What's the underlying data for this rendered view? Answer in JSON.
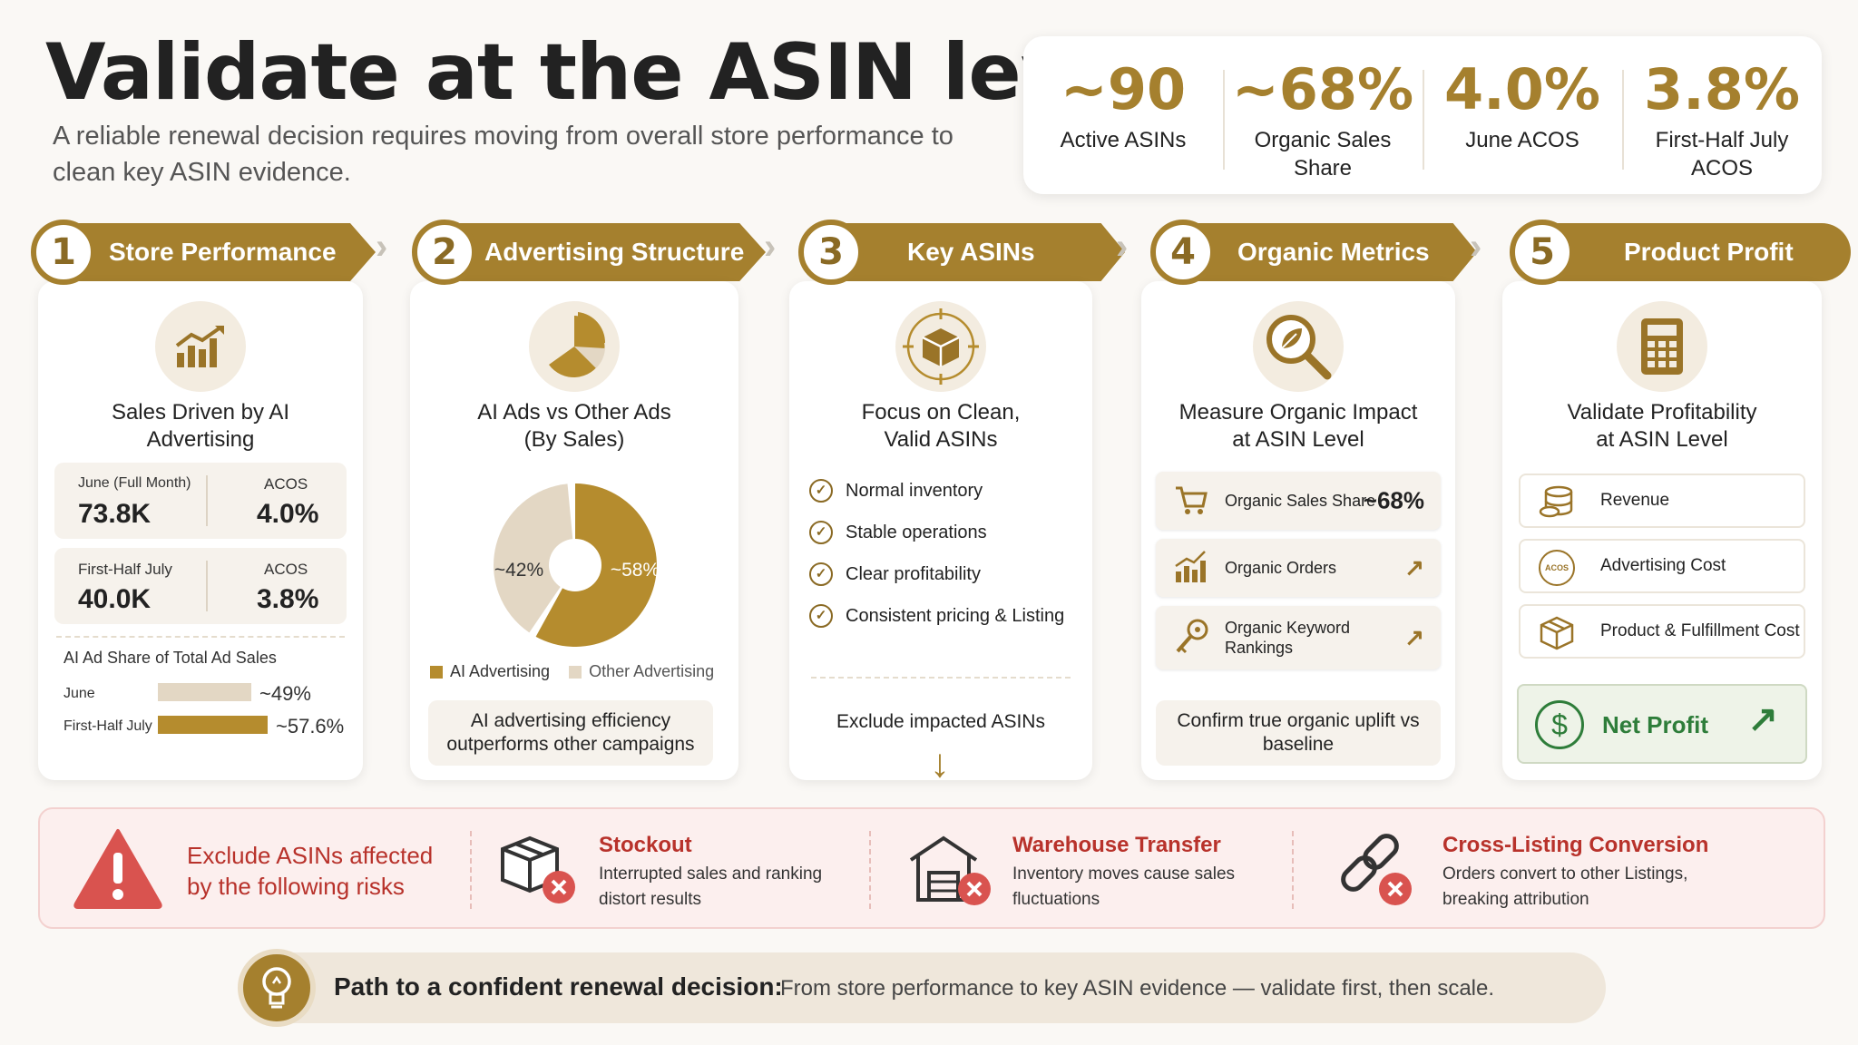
{
  "header": {
    "title": "Validate at the ASIN level",
    "subtitle": "A reliable renewal decision requires moving from overall store performance to clean key ASIN evidence."
  },
  "stats": [
    {
      "value": "~90",
      "label": "Active ASINs"
    },
    {
      "value": "~68%",
      "label": "Organic Sales Share"
    },
    {
      "value": "4.0%",
      "label": "June ACOS"
    },
    {
      "value": "3.8%",
      "label": "First-Half July ACOS"
    }
  ],
  "steps": [
    {
      "num": "1",
      "title": "Store Performance"
    },
    {
      "num": "2",
      "title": "Advertising Structure"
    },
    {
      "num": "3",
      "title": "Key ASINs"
    },
    {
      "num": "4",
      "title": "Organic Metrics"
    },
    {
      "num": "5",
      "title": "Product Profit"
    }
  ],
  "store": {
    "card_title": "Sales Driven by AI Advertising",
    "june_label": "June (Full Month)",
    "june_value": "73.8K",
    "june_acos_label": "ACOS",
    "june_acos": "4.0%",
    "july_label": "First-Half July",
    "july_value": "40.0K",
    "july_acos_label": "ACOS",
    "july_acos": "3.8%",
    "share_title": "AI Ad Share of Total Ad Sales",
    "share_rows": [
      {
        "label": "June",
        "value": "~49%",
        "fraction": 0.49,
        "color": "#e3d7c4"
      },
      {
        "label": "First-Half July",
        "value": "~57.6%",
        "fraction": 0.576,
        "color": "#b58c2e"
      }
    ]
  },
  "adstruct": {
    "card_title": "AI Ads vs Other Ads (By Sales)",
    "slice_ai": "~58%",
    "slice_other": "~42%",
    "legend_ai": "AI Advertising",
    "legend_other": "Other Advertising",
    "note": "AI advertising efficiency outperforms other campaigns",
    "colors": {
      "ai": "#b58c2e",
      "other": "#e3d7c4"
    }
  },
  "keyasins": {
    "card_title": "Focus on Clean, Valid ASINs",
    "checks": [
      "Normal inventory",
      "Stable operations",
      "Clear profitability",
      "Consistent pricing & Listing"
    ],
    "footer": "Exclude impacted ASINs"
  },
  "organic": {
    "card_title": "Measure Organic Impact at ASIN Level",
    "rows": [
      {
        "icon": "cart-icon",
        "label": "Organic Sales Share",
        "value": "~68%"
      },
      {
        "icon": "bar-chart-icon",
        "label": "Organic Orders",
        "value": "↗"
      },
      {
        "icon": "key-icon",
        "label": "Organic Keyword Rankings",
        "value": "↗"
      }
    ],
    "note": "Confirm true organic uplift vs baseline"
  },
  "profit": {
    "card_title": "Validate Profitability at ASIN Level",
    "rows": [
      {
        "icon": "coins-icon",
        "label": "Revenue"
      },
      {
        "icon": "acos-icon",
        "label": "Advertising Cost",
        "badge": "ACOS"
      },
      {
        "icon": "box-icon",
        "label": "Product & Fulfillment Cost"
      }
    ],
    "net_profit": "Net Profit"
  },
  "risks": {
    "intro": "Exclude ASINs affected by the following risks",
    "items": [
      {
        "title": "Stockout",
        "desc": "Interrupted sales and ranking distort results"
      },
      {
        "title": "Warehouse Transfer",
        "desc": "Inventory moves cause sales fluctuations"
      },
      {
        "title": "Cross-Listing Conversion",
        "desc": "Orders convert to other Listings, breaking attribution"
      }
    ]
  },
  "path": {
    "label": "Path to a confident renewal decision:",
    "text": "From store performance to key ASIN evidence — validate first, then scale."
  },
  "colors": {
    "accent": "#a5802e",
    "risk": "#b8322b",
    "success": "#2e7d3a"
  }
}
